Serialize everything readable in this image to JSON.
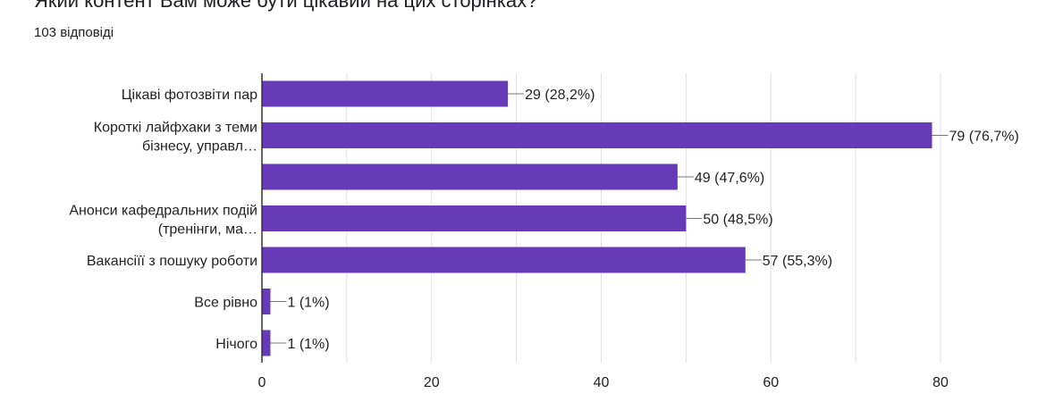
{
  "question": {
    "title": "Який контент Вам може бути цікавий на цих сторінках?",
    "responses": "103 відповіді"
  },
  "colors": {
    "bar": "#673ab7",
    "grid": "#e0e0e0",
    "axis": "#333333",
    "leader": "#777777"
  },
  "chart_data": {
    "type": "bar",
    "orientation": "horizontal",
    "title": "",
    "xlabel": "",
    "ylabel": "",
    "xlim": [
      0,
      80
    ],
    "grid": true,
    "x_ticks": [
      "0",
      "20",
      "40",
      "60",
      "80"
    ],
    "categories": [
      [
        "Цікаві фотозвіти пар"
      ],
      [
        "Короткі лайфхаки з теми",
        "бізнесу, управл…"
      ],
      [],
      [
        "Анонси кафедральних подій",
        "(тренінги, ма…"
      ],
      [
        "Вакансіїї з пошуку роботи"
      ],
      [
        "Все рівно"
      ],
      [
        "Нічого"
      ]
    ],
    "values": [
      29,
      79,
      49,
      50,
      57,
      1,
      1
    ],
    "data_labels": [
      "29 (28,2%)",
      "79 (76,7%)",
      "49 (47,6%)",
      "50 (48,5%)",
      "57 (55,3%)",
      "1 (1%)",
      "1 (1%)"
    ]
  }
}
